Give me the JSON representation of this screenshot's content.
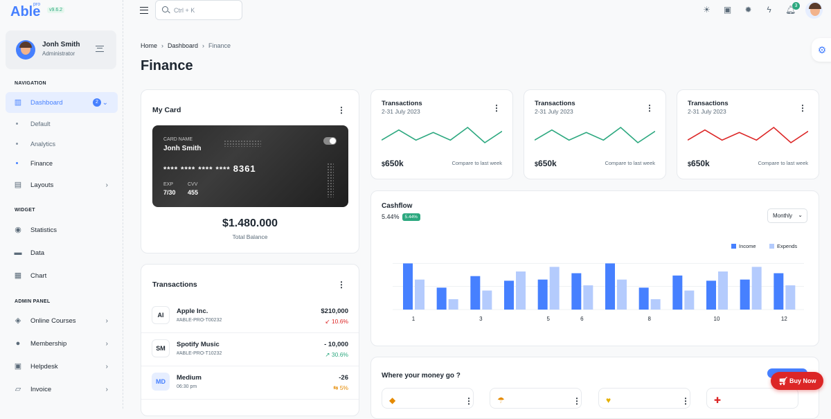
{
  "brand": {
    "name": "Able",
    "sup": "pro",
    "version": "v9.6.2"
  },
  "user": {
    "name": "Jonh Smith",
    "role": "Administrator"
  },
  "sidebar": {
    "sections": [
      "NAVIGATION",
      "WIDGET",
      "ADMIN PANEL"
    ],
    "dashboard": {
      "label": "Dashboard",
      "badge": "2"
    },
    "subitems": [
      "Default",
      "Analytics",
      "Finance"
    ],
    "layouts": "Layouts",
    "widgets": [
      "Statistics",
      "Data",
      "Chart"
    ],
    "admin": [
      "Online Courses",
      "Membership",
      "Helpdesk",
      "Invoice"
    ]
  },
  "topbar": {
    "search_placeholder": "Ctrl + K",
    "notif_count": "3"
  },
  "breadcrumb": [
    "Home",
    "Dashboard",
    "Finance"
  ],
  "page_title": "Finance",
  "my_card": {
    "title": "My Card",
    "card_name_label": "CARD NAME",
    "card_name": "Jonh Smith",
    "number_mask": "**** **** **** ****",
    "number_last": "8361",
    "exp_label": "EXP",
    "exp": "7/30",
    "cvv_label": "CVV",
    "cvv": "455",
    "balance": "$1.480.000",
    "balance_label": "Total Balance"
  },
  "transactions": {
    "title": "Transactions",
    "rows": [
      {
        "avatar": "AI",
        "name": "Apple Inc.",
        "sub": "#ABLE-PRO-T00232",
        "amount": "$210,000",
        "change": "↙ 10.6%"
      },
      {
        "avatar": "SM",
        "name": "Spotify Music",
        "sub": "#ABLE-PRO-T10232",
        "amount": "- 10,000",
        "change": "↗ 30.6%"
      },
      {
        "avatar": "MD",
        "name": "Medium",
        "sub": "06:30 pm",
        "amount": "-26",
        "change": "⇆ 5%"
      }
    ]
  },
  "mini_cards": [
    {
      "title": "Transactions",
      "date": "2-31 July 2023",
      "value_prefix": "$",
      "value": "650k",
      "compare": "Compare to last week",
      "color": "#2ca87f",
      "points": [
        10,
        2,
        10,
        4,
        10,
        0,
        12,
        3
      ]
    },
    {
      "title": "Transactions",
      "date": "2-31 July 2023",
      "value_prefix": "$",
      "value": "650k",
      "compare": "Compare to last week",
      "color": "#2ca87f",
      "points": [
        10,
        2,
        10,
        4,
        10,
        0,
        12,
        3
      ]
    },
    {
      "title": "Transactions",
      "date": "2-31 July 2023",
      "value_prefix": "$",
      "value": "650k",
      "compare": "Compare to last week",
      "color": "#dc2626",
      "points": [
        10,
        2,
        10,
        4,
        10,
        0,
        12,
        3
      ]
    }
  ],
  "cashflow": {
    "title": "Cashflow",
    "percent": "5.44%",
    "badge": "5.44%",
    "period": "Monthly",
    "chart_data": {
      "type": "bar",
      "categories": [
        "1",
        "2",
        "3",
        "4",
        "5",
        "6",
        "7",
        "8",
        "9",
        "10",
        "11",
        "12"
      ],
      "tick_labels": [
        "1",
        "3",
        "5",
        "6",
        "8",
        "10",
        "12"
      ],
      "series": [
        {
          "name": "Income",
          "color": "#4680ff",
          "values": [
            80,
            38,
            58,
            50,
            52,
            63,
            80,
            38,
            59,
            50,
            52,
            63
          ]
        },
        {
          "name": "Expends",
          "color": "#b4cbfd",
          "values": [
            52,
            18,
            33,
            66,
            74,
            42,
            52,
            18,
            33,
            66,
            74,
            42
          ]
        }
      ],
      "ylim": [
        0,
        90
      ],
      "legend": "top-right",
      "grid": true
    }
  },
  "money": {
    "title": "Where your money go ?"
  },
  "buy_now": "Buy Now"
}
